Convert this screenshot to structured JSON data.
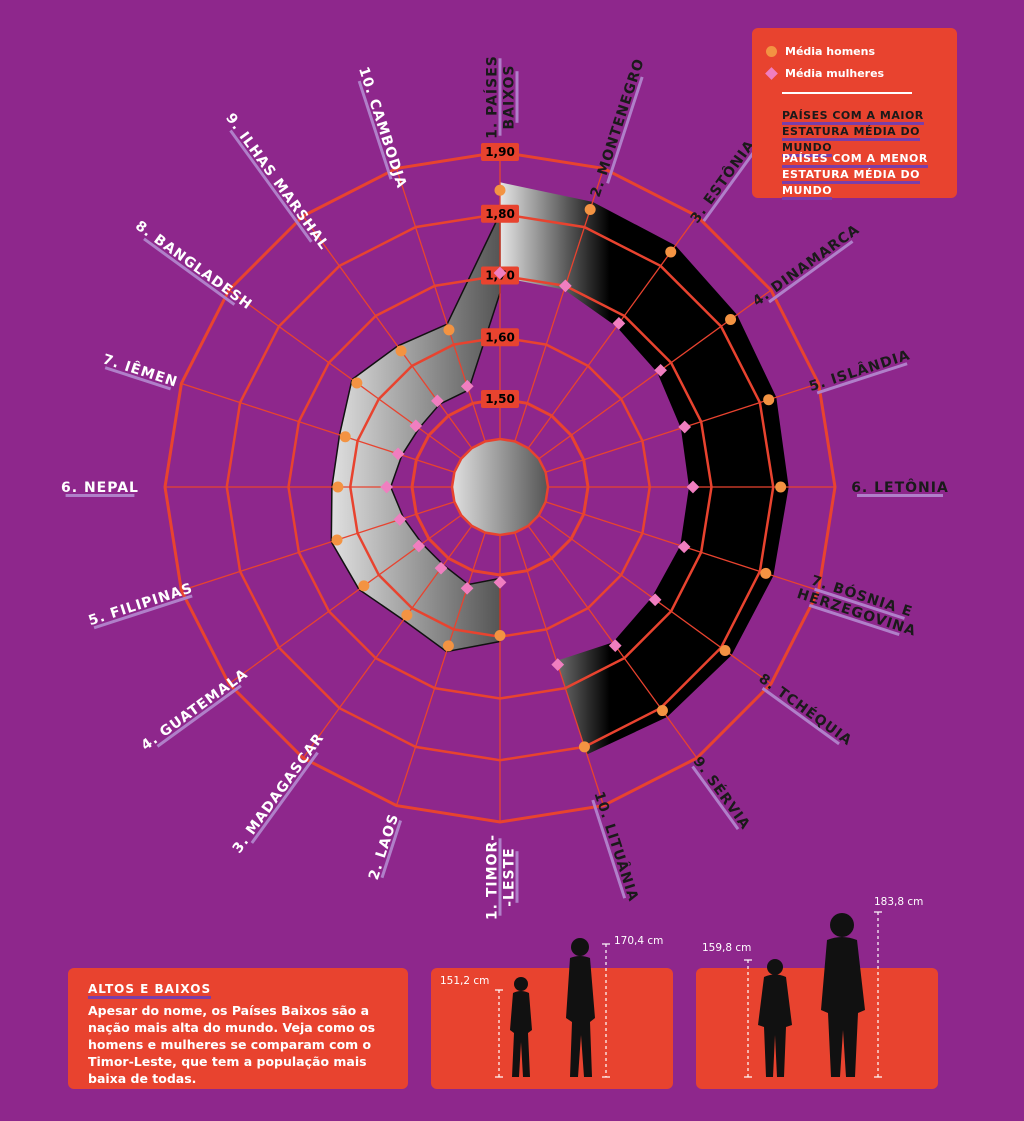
{
  "chart_data": {
    "type": "radar",
    "rticks": [
      "1,50",
      "1,60",
      "1,70",
      "1,80",
      "1,90"
    ],
    "rtick_values": [
      1.5,
      1.6,
      1.7,
      1.8,
      1.9
    ],
    "tallest": {
      "heading": "PAÍSES COM A MAIOR ESTATURA MÉDIA DO MUNDO",
      "categories": [
        "1. PAÍSES BAIXOS",
        "2. MONTENEGRO",
        "3. ESTÔNIA",
        "4. DINAMARCA",
        "5. ISLÂNDIA",
        "6. LETÔNIA",
        "7. BÓSNIA E HERZEGOVINA",
        "8. TCHÉQUIA",
        "9. SÉRVIA",
        "10. LITUÂNIA"
      ],
      "series": [
        {
          "name": "Média homens",
          "values": [
            1.838,
            1.83,
            1.828,
            1.819,
            1.815,
            1.812,
            1.81,
            1.808,
            1.805,
            1.8
          ]
        },
        {
          "name": "Média mulheres",
          "values": [
            1.704,
            1.7,
            1.685,
            1.679,
            1.672,
            1.67,
            1.671,
            1.668,
            1.675,
            1.66
          ]
        }
      ]
    },
    "shortest": {
      "heading": "PAÍSES COM A MENOR ESTATURA MÉDIA DO MUNDO",
      "categories": [
        "1. TIMOR-LESTE",
        "2. LAOS",
        "3. MADAGASCAR",
        "4. GUATEMALA",
        "5. FILIPINAS",
        "6. NEPAL",
        "7. IÊMEN",
        "8. BANGLADESH",
        "9. ILHAS MARSHAL",
        "10. CAMBODJA"
      ],
      "series": [
        {
          "name": "Média homens",
          "values": [
            1.598,
            1.628,
            1.614,
            1.63,
            1.635,
            1.62,
            1.621,
            1.644,
            1.63,
            1.625
          ]
        },
        {
          "name": "Média mulheres",
          "values": [
            1.512,
            1.53,
            1.52,
            1.52,
            1.528,
            1.541,
            1.531,
            1.526,
            1.53,
            1.529
          ]
        }
      ]
    }
  },
  "legend": {
    "men": "Média homens",
    "women": "Média mulheres",
    "tallest_line1": "PAÍSES COM A MAIOR",
    "tallest_line2": "ESTATURA MÉDIA DO MUNDO",
    "shortest_line1": "PAÍSES COM A MENOR",
    "shortest_line2": "ESTATURA MÉDIA DO MUNDO"
  },
  "colors": {
    "background": "#8e278c",
    "grid": "#e8432f",
    "men_marker": "#f39342",
    "women_marker": "#f07ec0",
    "panel": "#e8432f"
  },
  "intro": {
    "title": "ALTOS E BAIXOS",
    "text": "Apesar do nome, os Países Baixos são a nação mais alta do mundo. Veja como os homens e mulheres se comparam com o Timor-Leste, que tem a população mais baixa de todas."
  },
  "comparison": {
    "women_short": "151,2 cm",
    "women_tall": "170,4 cm",
    "men_short": "159,8 cm",
    "men_tall": "183,8 cm"
  }
}
